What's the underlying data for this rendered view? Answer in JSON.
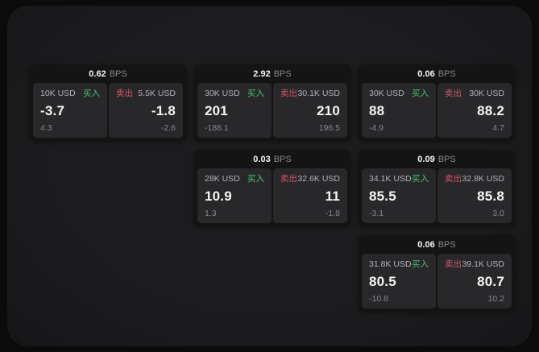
{
  "theme": {
    "outer_bg": "#0b0b0c",
    "window_bg": "#1c1c1e",
    "card_bg": "#141415",
    "panel_bg": "#28282b",
    "buy_color": "#4cc06e",
    "sell_color": "#d0566a",
    "value_color": "#f5f5f6",
    "muted_color": "#87878c",
    "label_color": "#b2b2b7"
  },
  "labels": {
    "unit": "BPS",
    "buy": "买入",
    "sell": "卖出"
  },
  "cards": [
    {
      "row": 1,
      "col": 1,
      "bps": "0.62",
      "buy": {
        "amount": "10K USD",
        "price": "-3.7",
        "sub": "4.3"
      },
      "sell": {
        "amount": "5.5K USD",
        "price": "-1.8",
        "sub": "-2.6"
      }
    },
    {
      "row": 1,
      "col": 2,
      "bps": "2.92",
      "buy": {
        "amount": "30K USD",
        "price": "201",
        "sub": "-188.1"
      },
      "sell": {
        "amount": "30.1K USD",
        "price": "210",
        "sub": "196.5"
      }
    },
    {
      "row": 1,
      "col": 3,
      "bps": "0.06",
      "buy": {
        "amount": "30K USD",
        "price": "88",
        "sub": "-4.9"
      },
      "sell": {
        "amount": "30K USD",
        "price": "88.2",
        "sub": "4.7"
      }
    },
    {
      "row": 2,
      "col": 2,
      "bps": "0.03",
      "buy": {
        "amount": "28K USD",
        "price": "10.9",
        "sub": "1.3"
      },
      "sell": {
        "amount": "32.6K USD",
        "price": "11",
        "sub": "-1.8"
      }
    },
    {
      "row": 2,
      "col": 3,
      "bps": "0.09",
      "buy": {
        "amount": "34.1K USD",
        "price": "85.5",
        "sub": "-3.1"
      },
      "sell": {
        "amount": "32.8K USD",
        "price": "85.8",
        "sub": "3.0"
      }
    },
    {
      "row": 3,
      "col": 3,
      "bps": "0.06",
      "buy": {
        "amount": "31.8K USD",
        "price": "80.5",
        "sub": "-10.8"
      },
      "sell": {
        "amount": "39.1K USD",
        "price": "80.7",
        "sub": "10.2"
      }
    }
  ],
  "layout_grid": {
    "col_origin": 27,
    "col_pitch": 204,
    "row_origin": 73,
    "row_pitch": 106
  }
}
